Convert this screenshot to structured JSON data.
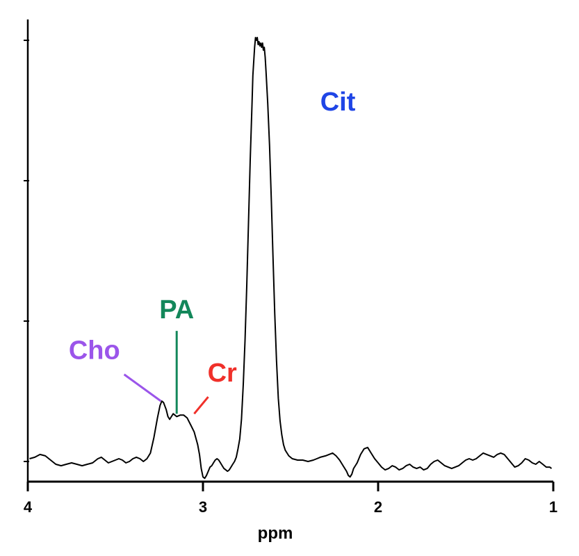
{
  "chart_data": {
    "type": "line",
    "title": "",
    "xlabel": "ppm",
    "ylabel": "",
    "x_reversed": true,
    "xlim": [
      4,
      1
    ],
    "ylim": [
      -0.12,
      3.1
    ],
    "x_ticks": [
      4,
      3,
      2,
      1
    ],
    "x_tick_labels": [
      "4",
      "3",
      "2",
      "1"
    ],
    "y_ticks": [
      0,
      1,
      2,
      3
    ],
    "y_tick_labels": [],
    "grid": false,
    "legend": "none",
    "series": [
      {
        "color": "#000000",
        "points": [
          [
            3.99,
            0.02
          ],
          [
            3.96,
            0.03
          ],
          [
            3.93,
            0.05
          ],
          [
            3.9,
            0.04
          ],
          [
            3.87,
            0.01
          ],
          [
            3.84,
            -0.02
          ],
          [
            3.81,
            -0.03
          ],
          [
            3.78,
            -0.02
          ],
          [
            3.75,
            -0.01
          ],
          [
            3.72,
            -0.02
          ],
          [
            3.69,
            -0.03
          ],
          [
            3.66,
            -0.02
          ],
          [
            3.63,
            -0.01
          ],
          [
            3.6,
            0.02
          ],
          [
            3.58,
            0.03
          ],
          [
            3.56,
            0.01
          ],
          [
            3.54,
            -0.01
          ],
          [
            3.52,
            0.0
          ],
          [
            3.5,
            0.01
          ],
          [
            3.48,
            0.02
          ],
          [
            3.46,
            0.01
          ],
          [
            3.44,
            -0.01
          ],
          [
            3.42,
            0.0
          ],
          [
            3.4,
            0.02
          ],
          [
            3.38,
            0.03
          ],
          [
            3.36,
            0.02
          ],
          [
            3.34,
            0.0
          ],
          [
            3.32,
            0.02
          ],
          [
            3.3,
            0.06
          ],
          [
            3.28,
            0.17
          ],
          [
            3.26,
            0.31
          ],
          [
            3.245,
            0.4
          ],
          [
            3.235,
            0.43
          ],
          [
            3.225,
            0.42
          ],
          [
            3.21,
            0.37
          ],
          [
            3.2,
            0.32
          ],
          [
            3.19,
            0.3
          ],
          [
            3.18,
            0.32
          ],
          [
            3.17,
            0.34
          ],
          [
            3.16,
            0.33
          ],
          [
            3.15,
            0.32
          ],
          [
            3.13,
            0.33
          ],
          [
            3.11,
            0.33
          ],
          [
            3.09,
            0.31
          ],
          [
            3.07,
            0.26
          ],
          [
            3.05,
            0.21
          ],
          [
            3.03,
            0.12
          ],
          [
            3.02,
            0.05
          ],
          [
            3.01,
            -0.05
          ],
          [
            3.0,
            -0.11
          ],
          [
            2.99,
            -0.12
          ],
          [
            2.98,
            -0.1
          ],
          [
            2.97,
            -0.07
          ],
          [
            2.96,
            -0.04
          ],
          [
            2.95,
            -0.03
          ],
          [
            2.94,
            -0.01
          ],
          [
            2.93,
            0.01
          ],
          [
            2.92,
            0.02
          ],
          [
            2.91,
            0.01
          ],
          [
            2.9,
            -0.01
          ],
          [
            2.89,
            -0.03
          ],
          [
            2.88,
            -0.05
          ],
          [
            2.87,
            -0.06
          ],
          [
            2.86,
            -0.07
          ],
          [
            2.85,
            -0.06
          ],
          [
            2.84,
            -0.04
          ],
          [
            2.83,
            -0.02
          ],
          [
            2.82,
            0.0
          ],
          [
            2.81,
            0.03
          ],
          [
            2.8,
            0.09
          ],
          [
            2.79,
            0.16
          ],
          [
            2.78,
            0.3
          ],
          [
            2.77,
            0.55
          ],
          [
            2.76,
            0.86
          ],
          [
            2.75,
            1.25
          ],
          [
            2.74,
            1.7
          ],
          [
            2.73,
            2.15
          ],
          [
            2.72,
            2.55
          ],
          [
            2.715,
            2.75
          ],
          [
            2.705,
            2.95
          ],
          [
            2.7,
            3.02
          ],
          [
            2.695,
            3.0
          ],
          [
            2.69,
            3.02
          ],
          [
            2.685,
            2.97
          ],
          [
            2.68,
            2.99
          ],
          [
            2.675,
            2.96
          ],
          [
            2.67,
            2.98
          ],
          [
            2.665,
            2.95
          ],
          [
            2.66,
            2.98
          ],
          [
            2.655,
            2.93
          ],
          [
            2.65,
            2.95
          ],
          [
            2.645,
            2.88
          ],
          [
            2.64,
            2.78
          ],
          [
            2.63,
            2.55
          ],
          [
            2.62,
            2.25
          ],
          [
            2.61,
            1.87
          ],
          [
            2.6,
            1.45
          ],
          [
            2.59,
            1.05
          ],
          [
            2.58,
            0.72
          ],
          [
            2.57,
            0.45
          ],
          [
            2.56,
            0.29
          ],
          [
            2.55,
            0.19
          ],
          [
            2.54,
            0.12
          ],
          [
            2.53,
            0.08
          ],
          [
            2.51,
            0.04
          ],
          [
            2.49,
            0.02
          ],
          [
            2.46,
            0.01
          ],
          [
            2.43,
            0.01
          ],
          [
            2.4,
            0.0
          ],
          [
            2.37,
            0.01
          ],
          [
            2.35,
            0.02
          ],
          [
            2.33,
            0.03
          ],
          [
            2.3,
            0.04
          ],
          [
            2.28,
            0.05
          ],
          [
            2.26,
            0.06
          ],
          [
            2.24,
            0.04
          ],
          [
            2.22,
            0.01
          ],
          [
            2.2,
            -0.03
          ],
          [
            2.18,
            -0.07
          ],
          [
            2.17,
            -0.1
          ],
          [
            2.16,
            -0.11
          ],
          [
            2.15,
            -0.09
          ],
          [
            2.14,
            -0.05
          ],
          [
            2.12,
            -0.01
          ],
          [
            2.1,
            0.05
          ],
          [
            2.08,
            0.09
          ],
          [
            2.06,
            0.1
          ],
          [
            2.05,
            0.08
          ],
          [
            2.04,
            0.06
          ],
          [
            2.02,
            0.02
          ],
          [
            2.0,
            -0.01
          ],
          [
            1.98,
            -0.04
          ],
          [
            1.96,
            -0.06
          ],
          [
            1.94,
            -0.05
          ],
          [
            1.92,
            -0.03
          ],
          [
            1.9,
            -0.04
          ],
          [
            1.88,
            -0.06
          ],
          [
            1.86,
            -0.05
          ],
          [
            1.84,
            -0.03
          ],
          [
            1.82,
            -0.02
          ],
          [
            1.8,
            -0.04
          ],
          [
            1.78,
            -0.05
          ],
          [
            1.76,
            -0.04
          ],
          [
            1.74,
            -0.06
          ],
          [
            1.72,
            -0.05
          ],
          [
            1.7,
            -0.02
          ],
          [
            1.68,
            0.0
          ],
          [
            1.66,
            0.01
          ],
          [
            1.64,
            -0.01
          ],
          [
            1.62,
            -0.03
          ],
          [
            1.6,
            -0.04
          ],
          [
            1.58,
            -0.05
          ],
          [
            1.56,
            -0.04
          ],
          [
            1.54,
            -0.03
          ],
          [
            1.52,
            -0.01
          ],
          [
            1.5,
            0.01
          ],
          [
            1.48,
            0.02
          ],
          [
            1.46,
            0.01
          ],
          [
            1.44,
            0.02
          ],
          [
            1.42,
            0.04
          ],
          [
            1.4,
            0.06
          ],
          [
            1.38,
            0.05
          ],
          [
            1.36,
            0.04
          ],
          [
            1.34,
            0.03
          ],
          [
            1.32,
            0.05
          ],
          [
            1.3,
            0.06
          ],
          [
            1.28,
            0.05
          ],
          [
            1.26,
            0.02
          ],
          [
            1.24,
            -0.01
          ],
          [
            1.22,
            -0.04
          ],
          [
            1.2,
            -0.03
          ],
          [
            1.18,
            -0.01
          ],
          [
            1.16,
            0.02
          ],
          [
            1.14,
            0.01
          ],
          [
            1.12,
            -0.01
          ],
          [
            1.1,
            -0.02
          ],
          [
            1.08,
            0.0
          ],
          [
            1.06,
            -0.02
          ],
          [
            1.04,
            -0.04
          ],
          [
            1.02,
            -0.04
          ],
          [
            1.01,
            -0.05
          ]
        ]
      }
    ],
    "annotations": [
      {
        "text": "Cit",
        "color": "#1f45e6",
        "label_x": 2.23,
        "label_y": 2.5
      },
      {
        "text": "PA",
        "color": "#13875a",
        "label_x": 3.15,
        "label_y": 1.02,
        "line": [
          [
            3.15,
            0.93
          ],
          [
            3.15,
            0.34
          ]
        ]
      },
      {
        "text": "Cho",
        "color": "#9b55ea",
        "label_x": 3.62,
        "label_y": 0.73,
        "line": [
          [
            3.45,
            0.62
          ],
          [
            3.24,
            0.43
          ]
        ]
      },
      {
        "text": "Cr",
        "color": "#f0302a",
        "label_x": 2.89,
        "label_y": 0.57,
        "line": [
          [
            2.97,
            0.46
          ],
          [
            3.05,
            0.34
          ]
        ]
      }
    ]
  }
}
